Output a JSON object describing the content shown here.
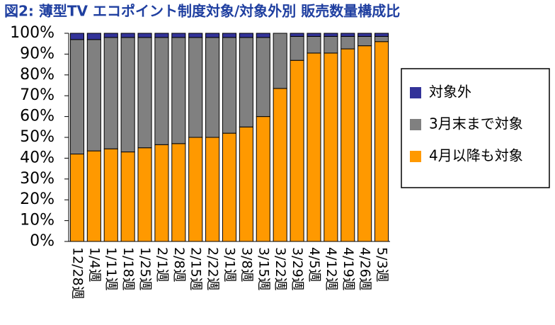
{
  "chart_data": {
    "type": "stacked_bar",
    "title": "図2: 薄型TV エコポイント制度対象/対象外別 販売数量構成比",
    "categories": [
      "12/28週",
      "1/4週",
      "1/11週",
      "1/18週",
      "1/25週",
      "2/1週",
      "2/8週",
      "2/15週",
      "2/22週",
      "3/1週",
      "3/8週",
      "3/15週",
      "3/22週",
      "3/29週",
      "4/5週",
      "4/12週",
      "4/19週",
      "4/26週",
      "5/3週"
    ],
    "series": [
      {
        "name": "4月以降も対象",
        "color": "#ff9900",
        "values": [
          42,
          43.5,
          44.5,
          43,
          45,
          46.5,
          47,
          50,
          50,
          52,
          55,
          60,
          73.5,
          87,
          90.5,
          90.5,
          92.5,
          94,
          96
        ]
      },
      {
        "name": "3月末まで対象",
        "color": "#808080",
        "values": [
          55,
          53.5,
          53.5,
          55,
          53,
          51.5,
          51,
          48,
          48,
          46,
          43,
          38,
          26.5,
          11.5,
          8,
          8,
          6,
          4.5,
          2.5
        ]
      },
      {
        "name": "対象外",
        "color": "#333399",
        "values": [
          3,
          3,
          2,
          2,
          2,
          2,
          2,
          2,
          2,
          2,
          2,
          2,
          0,
          1.5,
          1.5,
          1.5,
          1.5,
          1.5,
          1.5
        ]
      }
    ],
    "ylim": [
      0,
      100
    ],
    "yticks": [
      {
        "value": 0,
        "label": "0%"
      },
      {
        "value": 10,
        "label": "10%"
      },
      {
        "value": 20,
        "label": "20%"
      },
      {
        "value": 30,
        "label": "30%"
      },
      {
        "value": 40,
        "label": "40%"
      },
      {
        "value": 50,
        "label": "50%"
      },
      {
        "value": 60,
        "label": "60%"
      },
      {
        "value": 70,
        "label": "70%"
      },
      {
        "value": 80,
        "label": "80%"
      },
      {
        "value": 90,
        "label": "90%"
      },
      {
        "value": 100,
        "label": "100%"
      }
    ],
    "legend": "right"
  }
}
